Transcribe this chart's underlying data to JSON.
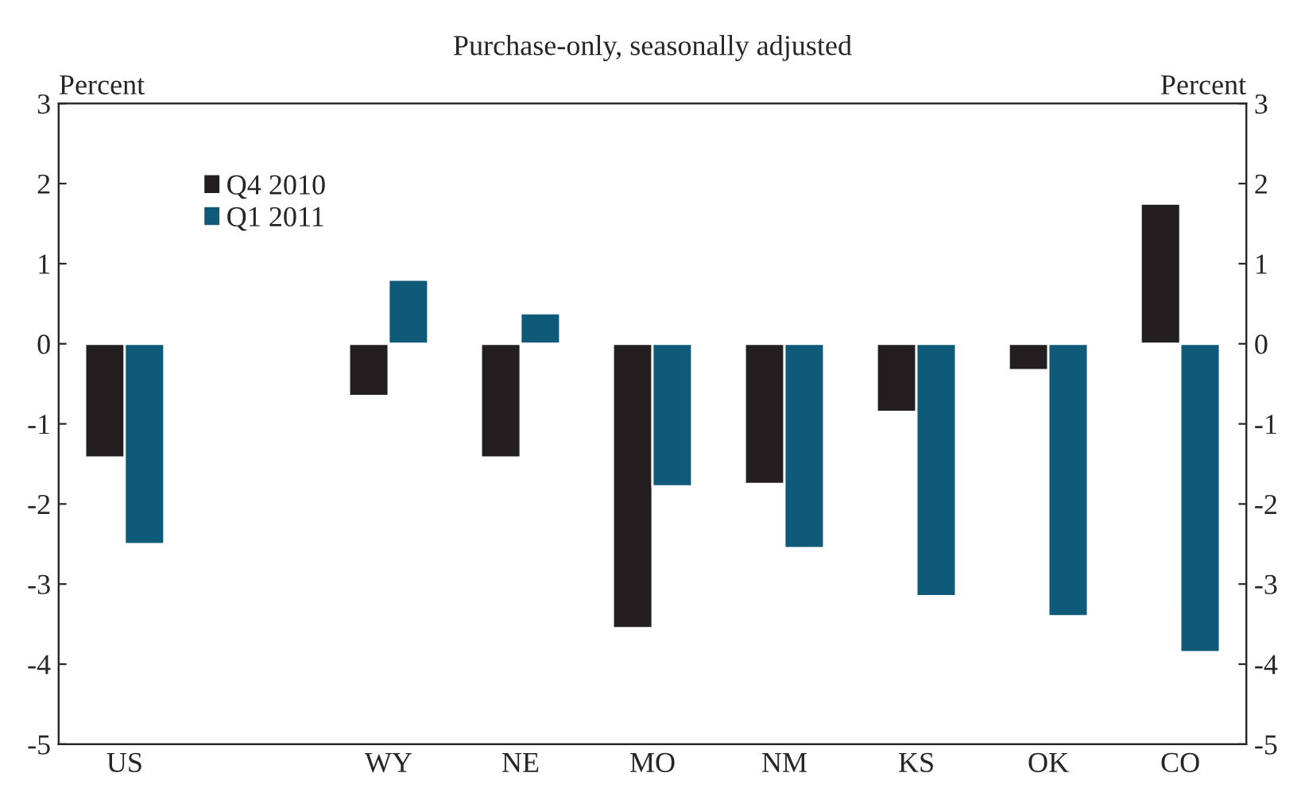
{
  "chart_data": {
    "type": "bar",
    "title": "Purchase-only, seasonally adjusted",
    "ylabel": "Percent",
    "y2label": "Percent",
    "categories": [
      "US",
      null,
      "WY",
      "NE",
      "MO",
      "NM",
      "KS",
      "OK",
      "CO"
    ],
    "series": [
      {
        "name": "Q4 2010",
        "color": "#231f20",
        "values": [
          -1.42,
          null,
          -0.65,
          -1.42,
          -3.55,
          -1.75,
          -0.85,
          -0.33,
          1.75
        ]
      },
      {
        "name": "Q1 2011",
        "color": "#0f5a78",
        "values": [
          -2.5,
          null,
          0.8,
          0.38,
          -1.78,
          -2.55,
          -3.15,
          -3.4,
          -3.85
        ]
      }
    ],
    "ylim": [
      -5,
      3
    ],
    "yticks": [
      -5,
      -4,
      -3,
      -2,
      -1,
      0,
      1,
      2,
      3
    ],
    "y2lim": [
      -5,
      3
    ],
    "y2ticks": [
      -5,
      -4,
      -3,
      -2,
      -1,
      0,
      1,
      2,
      3
    ],
    "legend": "top left",
    "grid": false
  }
}
